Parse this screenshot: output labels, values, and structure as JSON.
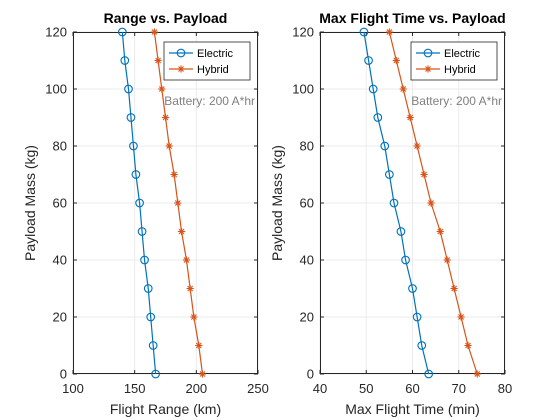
{
  "figure": {
    "background": "#ffffff"
  },
  "chart_data": [
    {
      "type": "line",
      "title": "Range vs. Payload",
      "xlabel": "Flight Range (km)",
      "ylabel": "Payload Mass (kg)",
      "xlim": [
        100,
        250
      ],
      "ylim": [
        0,
        120
      ],
      "xticks": [
        100,
        150,
        200,
        250
      ],
      "yticks": [
        0,
        20,
        40,
        60,
        80,
        100,
        120
      ],
      "grid": true,
      "legend_position": "top-right",
      "annotation": "Battery: 200 A*hr",
      "series": [
        {
          "name": "Electric",
          "color": "#0072BD",
          "marker": "circle",
          "points": [
            [
              167,
              0
            ],
            [
              165,
              10
            ],
            [
              163,
              20
            ],
            [
              161,
              30
            ],
            [
              158,
              40
            ],
            [
              156,
              50
            ],
            [
              154,
              60
            ],
            [
              151,
              70
            ],
            [
              149,
              80
            ],
            [
              147,
              90
            ],
            [
              145,
              100
            ],
            [
              142,
              110
            ],
            [
              140,
              120
            ]
          ]
        },
        {
          "name": "Hybrid",
          "color": "#D95319",
          "marker": "asterisk",
          "points": [
            [
              205,
              0
            ],
            [
              202,
              10
            ],
            [
              198,
              20
            ],
            [
              195,
              30
            ],
            [
              192,
              40
            ],
            [
              188,
              50
            ],
            [
              185,
              60
            ],
            [
              182,
              70
            ],
            [
              178,
              80
            ],
            [
              175,
              90
            ],
            [
              172,
              100
            ],
            [
              169,
              110
            ],
            [
              166,
              120
            ]
          ]
        }
      ]
    },
    {
      "type": "line",
      "title": "Max Flight Time vs. Payload",
      "xlabel": "Max Flight Time (min)",
      "ylabel": "Payload Mass (kg)",
      "xlim": [
        40,
        80
      ],
      "ylim": [
        0,
        120
      ],
      "xticks": [
        40,
        50,
        60,
        70,
        80
      ],
      "yticks": [
        0,
        20,
        40,
        60,
        80,
        100,
        120
      ],
      "grid": true,
      "legend_position": "top-right",
      "annotation": "Battery: 200 A*hr",
      "series": [
        {
          "name": "Electric",
          "color": "#0072BD",
          "marker": "circle",
          "points": [
            [
              63.5,
              0
            ],
            [
              62,
              10
            ],
            [
              61,
              20
            ],
            [
              60,
              30
            ],
            [
              58.5,
              40
            ],
            [
              57.5,
              50
            ],
            [
              56,
              60
            ],
            [
              55,
              70
            ],
            [
              54,
              80
            ],
            [
              52.5,
              90
            ],
            [
              51.5,
              100
            ],
            [
              50.5,
              110
            ],
            [
              49.5,
              120
            ]
          ]
        },
        {
          "name": "Hybrid",
          "color": "#D95319",
          "marker": "asterisk",
          "points": [
            [
              74,
              0
            ],
            [
              72,
              10
            ],
            [
              70.5,
              20
            ],
            [
              69,
              30
            ],
            [
              67.5,
              40
            ],
            [
              66,
              50
            ],
            [
              64,
              60
            ],
            [
              62.5,
              70
            ],
            [
              61,
              80
            ],
            [
              59.5,
              90
            ],
            [
              58,
              100
            ],
            [
              56.5,
              110
            ],
            [
              55,
              120
            ]
          ]
        }
      ]
    }
  ]
}
